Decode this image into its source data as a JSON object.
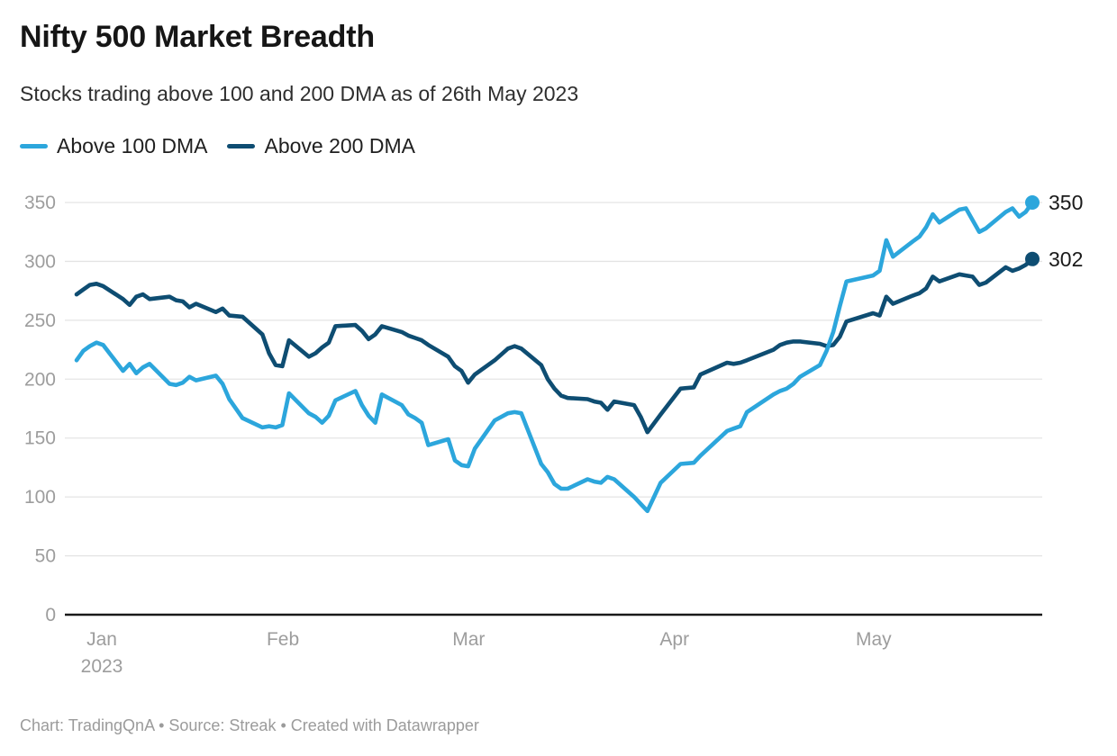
{
  "header": {
    "title": "Nifty 500 Market Breadth",
    "subtitle": "Stocks trading above 100 and 200 DMA as of 26th May 2023"
  },
  "legend": {
    "items": [
      {
        "label": "Above 100 DMA",
        "color": "#2ca6dc"
      },
      {
        "label": "Above 200 DMA",
        "color": "#0e4d72"
      }
    ]
  },
  "footer": {
    "text": "Chart: TradingQnA • Source: Streak • Created with Datawrapper"
  },
  "chart_data": {
    "type": "line",
    "title": "Nifty 500 Market Breadth",
    "subtitle": "Stocks trading above 100 and 200 DMA as of 26th May 2023",
    "grid": true,
    "legend_position": "top-left",
    "x_axis": {
      "ticks": [
        {
          "label": "Jan",
          "sublabel": "2023",
          "date": "2023-01-01"
        },
        {
          "label": "Feb",
          "date": "2023-02-01"
        },
        {
          "label": "Mar",
          "date": "2023-03-01"
        },
        {
          "label": "Apr",
          "date": "2023-04-01"
        },
        {
          "label": "May",
          "date": "2023-05-01"
        }
      ]
    },
    "y_axis": {
      "ticks": [
        0,
        50,
        100,
        150,
        200,
        250,
        300,
        350
      ],
      "range": [
        0,
        350
      ]
    },
    "dates": [
      "2023-01-02",
      "2023-01-03",
      "2023-01-04",
      "2023-01-05",
      "2023-01-06",
      "2023-01-09",
      "2023-01-10",
      "2023-01-11",
      "2023-01-12",
      "2023-01-13",
      "2023-01-16",
      "2023-01-17",
      "2023-01-18",
      "2023-01-19",
      "2023-01-20",
      "2023-01-23",
      "2023-01-24",
      "2023-01-25",
      "2023-01-27",
      "2023-01-30",
      "2023-01-31",
      "2023-02-01",
      "2023-02-02",
      "2023-02-03",
      "2023-02-06",
      "2023-02-07",
      "2023-02-08",
      "2023-02-09",
      "2023-02-10",
      "2023-02-13",
      "2023-02-14",
      "2023-02-15",
      "2023-02-16",
      "2023-02-17",
      "2023-02-20",
      "2023-02-21",
      "2023-02-22",
      "2023-02-23",
      "2023-02-24",
      "2023-02-27",
      "2023-02-28",
      "2023-03-01",
      "2023-03-02",
      "2023-03-03",
      "2023-03-06",
      "2023-03-08",
      "2023-03-09",
      "2023-03-10",
      "2023-03-13",
      "2023-03-14",
      "2023-03-15",
      "2023-03-16",
      "2023-03-17",
      "2023-03-20",
      "2023-03-21",
      "2023-03-22",
      "2023-03-23",
      "2023-03-24",
      "2023-03-27",
      "2023-03-28",
      "2023-03-29",
      "2023-03-31",
      "2023-04-03",
      "2023-04-05",
      "2023-04-06",
      "2023-04-10",
      "2023-04-11",
      "2023-04-12",
      "2023-04-13",
      "2023-04-17",
      "2023-04-18",
      "2023-04-19",
      "2023-04-20",
      "2023-04-21",
      "2023-04-24",
      "2023-04-25",
      "2023-04-26",
      "2023-04-27",
      "2023-04-28",
      "2023-05-02",
      "2023-05-03",
      "2023-05-04",
      "2023-05-05",
      "2023-05-08",
      "2023-05-09",
      "2023-05-10",
      "2023-05-11",
      "2023-05-12",
      "2023-05-15",
      "2023-05-16",
      "2023-05-17",
      "2023-05-18",
      "2023-05-19",
      "2023-05-22",
      "2023-05-23",
      "2023-05-24",
      "2023-05-25",
      "2023-05-26"
    ],
    "series": [
      {
        "name": "Above 100 DMA",
        "color": "#2ca6dc",
        "end_label": "350",
        "values": [
          216,
          224,
          228,
          231,
          229,
          207,
          213,
          205,
          210,
          213,
          196,
          195,
          197,
          202,
          199,
          203,
          196,
          183,
          167,
          159,
          160,
          159,
          161,
          188,
          171,
          168,
          163,
          169,
          182,
          190,
          178,
          169,
          163,
          187,
          178,
          170,
          167,
          163,
          144,
          149,
          131,
          127,
          126,
          141,
          165,
          171,
          172,
          171,
          128,
          121,
          111,
          107,
          107,
          115,
          113,
          112,
          117,
          115,
          100,
          94,
          88,
          112,
          128,
          129,
          135,
          156,
          158,
          160,
          172,
          187,
          190,
          192,
          196,
          202,
          212,
          224,
          240,
          262,
          283,
          288,
          292,
          318,
          304,
          317,
          321,
          329,
          340,
          333,
          344,
          345,
          335,
          325,
          328,
          342,
          345,
          338,
          342,
          350
        ]
      },
      {
        "name": "Above 200 DMA",
        "color": "#0e4d72",
        "end_label": "302",
        "values": [
          272,
          276,
          280,
          281,
          279,
          268,
          263,
          270,
          272,
          268,
          270,
          267,
          266,
          261,
          264,
          257,
          260,
          254,
          253,
          238,
          222,
          212,
          211,
          233,
          219,
          222,
          227,
          231,
          245,
          246,
          241,
          234,
          238,
          245,
          240,
          237,
          235,
          233,
          229,
          219,
          211,
          207,
          197,
          204,
          216,
          226,
          228,
          226,
          212,
          200,
          192,
          186,
          184,
          183,
          181,
          180,
          174,
          181,
          178,
          168,
          155,
          170,
          192,
          193,
          204,
          214,
          213,
          214,
          216,
          225,
          229,
          231,
          232,
          232,
          230,
          228,
          229,
          236,
          249,
          256,
          254,
          270,
          264,
          271,
          273,
          277,
          287,
          283,
          289,
          288,
          287,
          280,
          282,
          295,
          292,
          294,
          297,
          302
        ]
      }
    ]
  }
}
